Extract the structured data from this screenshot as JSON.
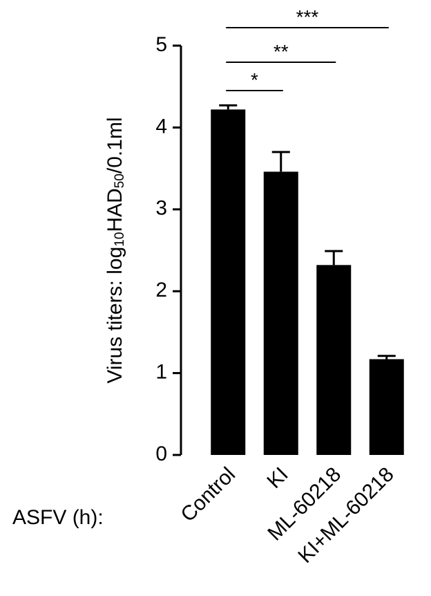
{
  "chart_data": {
    "type": "bar",
    "y_label": [
      "Virus titers: log",
      "10",
      "HAD",
      "50",
      "/0.1ml"
    ],
    "x_label": "ASFV (h):",
    "categories": [
      "Control",
      "KI",
      "ML-60218",
      "KI+ML-60218"
    ],
    "values": [
      4.22,
      3.46,
      2.32,
      1.17
    ],
    "errors": [
      0.05,
      0.24,
      0.17,
      0.04
    ],
    "color": "#000000",
    "ylim": [
      0,
      5
    ],
    "yticks": [
      0,
      1,
      2,
      3,
      4,
      5
    ],
    "significance": [
      {
        "from": 0,
        "to": 1,
        "label": "*"
      },
      {
        "from": 0,
        "to": 2,
        "label": "**"
      },
      {
        "from": 0,
        "to": 3,
        "label": "***"
      }
    ]
  }
}
